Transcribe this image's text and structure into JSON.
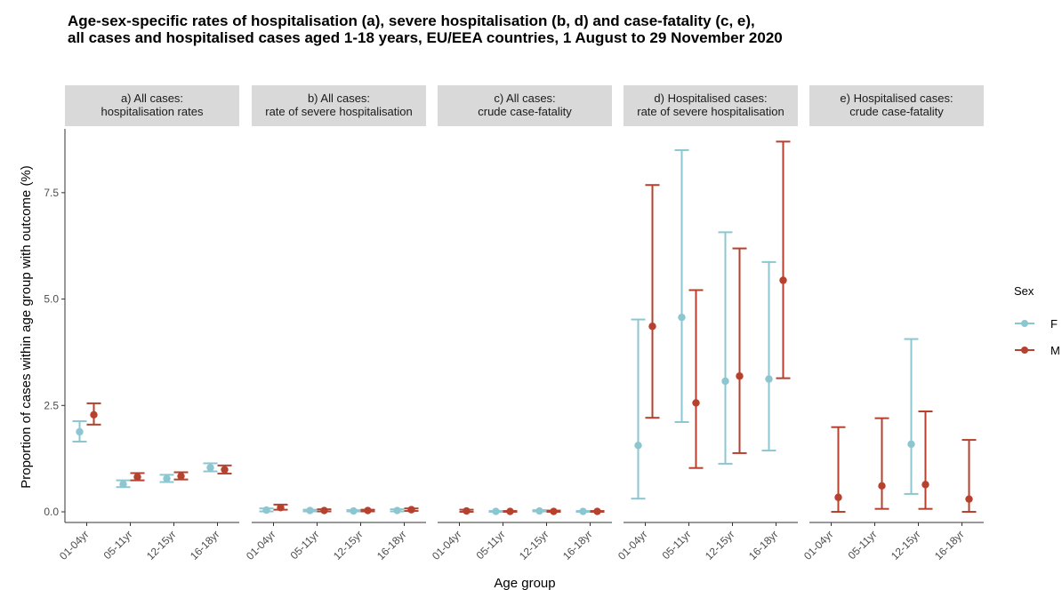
{
  "title_lines": [
    "Age-sex-specific rates of hospitalisation (a), severe hospitalisation (b, d) and case-fatality (c, e),",
    "all cases and hospitalised cases aged 1-18 years, EU/EEA countries, 1 August to 29 November 2020"
  ],
  "chart_data": {
    "type": "scatter",
    "error_bars": true,
    "xlabel": "Age group",
    "ylabel": "Proportion of cases within age group with outcome (%)",
    "ylim": [
      -0.25,
      9.0
    ],
    "yticks": [
      0.0,
      2.5,
      5.0,
      7.5
    ],
    "ytick_labels": [
      "0.0",
      "2.5",
      "5.0",
      "7.5"
    ],
    "categories": [
      "01-04yr",
      "05-11yr",
      "12-15yr",
      "16-18yr"
    ],
    "grid": false,
    "legend": {
      "title": "Sex",
      "position": "right",
      "entries": [
        {
          "key": "F",
          "label": "F",
          "color": "#8cc7d1"
        },
        {
          "key": "M",
          "label": "M",
          "color": "#b5412e"
        }
      ]
    },
    "panels": [
      {
        "label_lines": [
          "a) All cases:",
          "hospitalisation rates"
        ],
        "series": [
          {
            "name": "F",
            "values": [
              1.88,
              0.65,
              0.78,
              1.04
            ],
            "lower": [
              1.65,
              0.58,
              0.7,
              0.95
            ],
            "upper": [
              2.13,
              0.74,
              0.87,
              1.14
            ]
          },
          {
            "name": "M",
            "values": [
              2.28,
              0.82,
              0.84,
              0.99
            ],
            "lower": [
              2.05,
              0.74,
              0.76,
              0.9
            ],
            "upper": [
              2.55,
              0.91,
              0.93,
              1.09
            ]
          }
        ]
      },
      {
        "label_lines": [
          "b) All cases:",
          "rate of severe hospitalisation"
        ],
        "series": [
          {
            "name": "F",
            "values": [
              0.04,
              0.03,
              0.02,
              0.03
            ],
            "lower": [
              0.01,
              0.01,
              0.01,
              0.01
            ],
            "upper": [
              0.08,
              0.05,
              0.04,
              0.06
            ]
          },
          {
            "name": "M",
            "values": [
              0.1,
              0.03,
              0.03,
              0.05
            ],
            "lower": [
              0.05,
              0.01,
              0.01,
              0.02
            ],
            "upper": [
              0.17,
              0.06,
              0.05,
              0.08
            ]
          }
        ]
      },
      {
        "label_lines": [
          "c) All cases:",
          "crude case-fatality"
        ],
        "series": [
          {
            "name": "F",
            "values": [
              null,
              0.01,
              0.02,
              0.01
            ],
            "lower": [
              null,
              0.0,
              0.01,
              0.0
            ],
            "upper": [
              null,
              0.02,
              0.04,
              0.02
            ]
          },
          {
            "name": "M",
            "values": [
              0.02,
              0.01,
              0.01,
              0.01
            ],
            "lower": [
              0.0,
              0.0,
              0.0,
              0.0
            ],
            "upper": [
              0.05,
              0.02,
              0.03,
              0.02
            ]
          }
        ]
      },
      {
        "label_lines": [
          "d) Hospitalised cases:",
          "rate of severe hospitalisation"
        ],
        "series": [
          {
            "name": "F",
            "values": [
              1.56,
              4.57,
              3.07,
              3.12
            ],
            "lower": [
              0.31,
              2.11,
              1.13,
              1.44
            ],
            "upper": [
              4.52,
              8.5,
              6.57,
              5.87
            ]
          },
          {
            "name": "M",
            "values": [
              4.36,
              2.56,
              3.19,
              5.44
            ],
            "lower": [
              2.21,
              1.03,
              1.38,
              3.14
            ],
            "upper": [
              7.68,
              5.21,
              6.19,
              8.7
            ]
          }
        ]
      },
      {
        "label_lines": [
          "e) Hospitalised cases:",
          "crude case-fatality"
        ],
        "series": [
          {
            "name": "F",
            "values": [
              null,
              null,
              1.59,
              null
            ],
            "lower": [
              null,
              null,
              0.42,
              null
            ],
            "upper": [
              null,
              null,
              4.06,
              null
            ]
          },
          {
            "name": "M",
            "values": [
              0.34,
              0.61,
              0.64,
              0.3
            ],
            "lower": [
              0.0,
              0.07,
              0.07,
              0.0
            ],
            "upper": [
              1.99,
              2.2,
              2.36,
              1.69
            ]
          }
        ]
      }
    ]
  }
}
